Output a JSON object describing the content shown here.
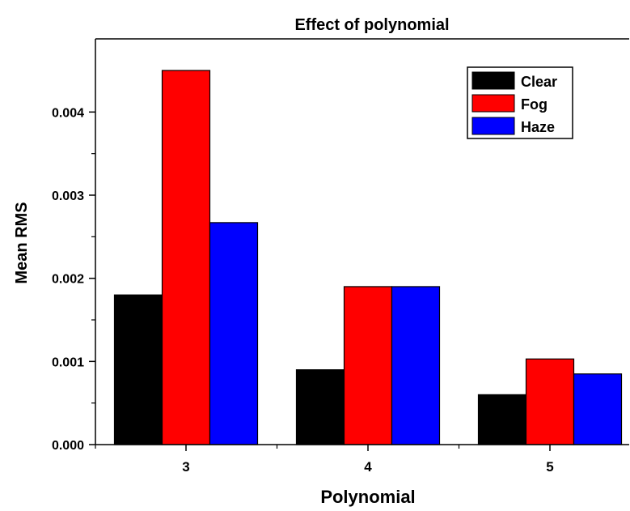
{
  "chart_data": {
    "type": "bar",
    "title": "Effect of polynomial",
    "xlabel": "Polynomial",
    "ylabel": "Mean RMS",
    "categories": [
      "3",
      "4",
      "5"
    ],
    "series": [
      {
        "name": "Clear",
        "color": "#000000",
        "values": [
          0.0018,
          0.0009,
          0.0006
        ]
      },
      {
        "name": "Fog",
        "color": "#ff0000",
        "values": [
          0.0045,
          0.0019,
          0.00103
        ]
      },
      {
        "name": "Haze",
        "color": "#0000ff",
        "values": [
          0.00267,
          0.0019,
          0.00085
        ]
      }
    ],
    "ylim": [
      0,
      0.0045
    ],
    "yticks": [
      "0.000",
      "0.001",
      "0.002",
      "0.003",
      "0.004"
    ],
    "ytick_values": [
      0,
      0.001,
      0.002,
      0.003,
      0.004
    ],
    "grid": false,
    "legend_position": "top-right"
  }
}
